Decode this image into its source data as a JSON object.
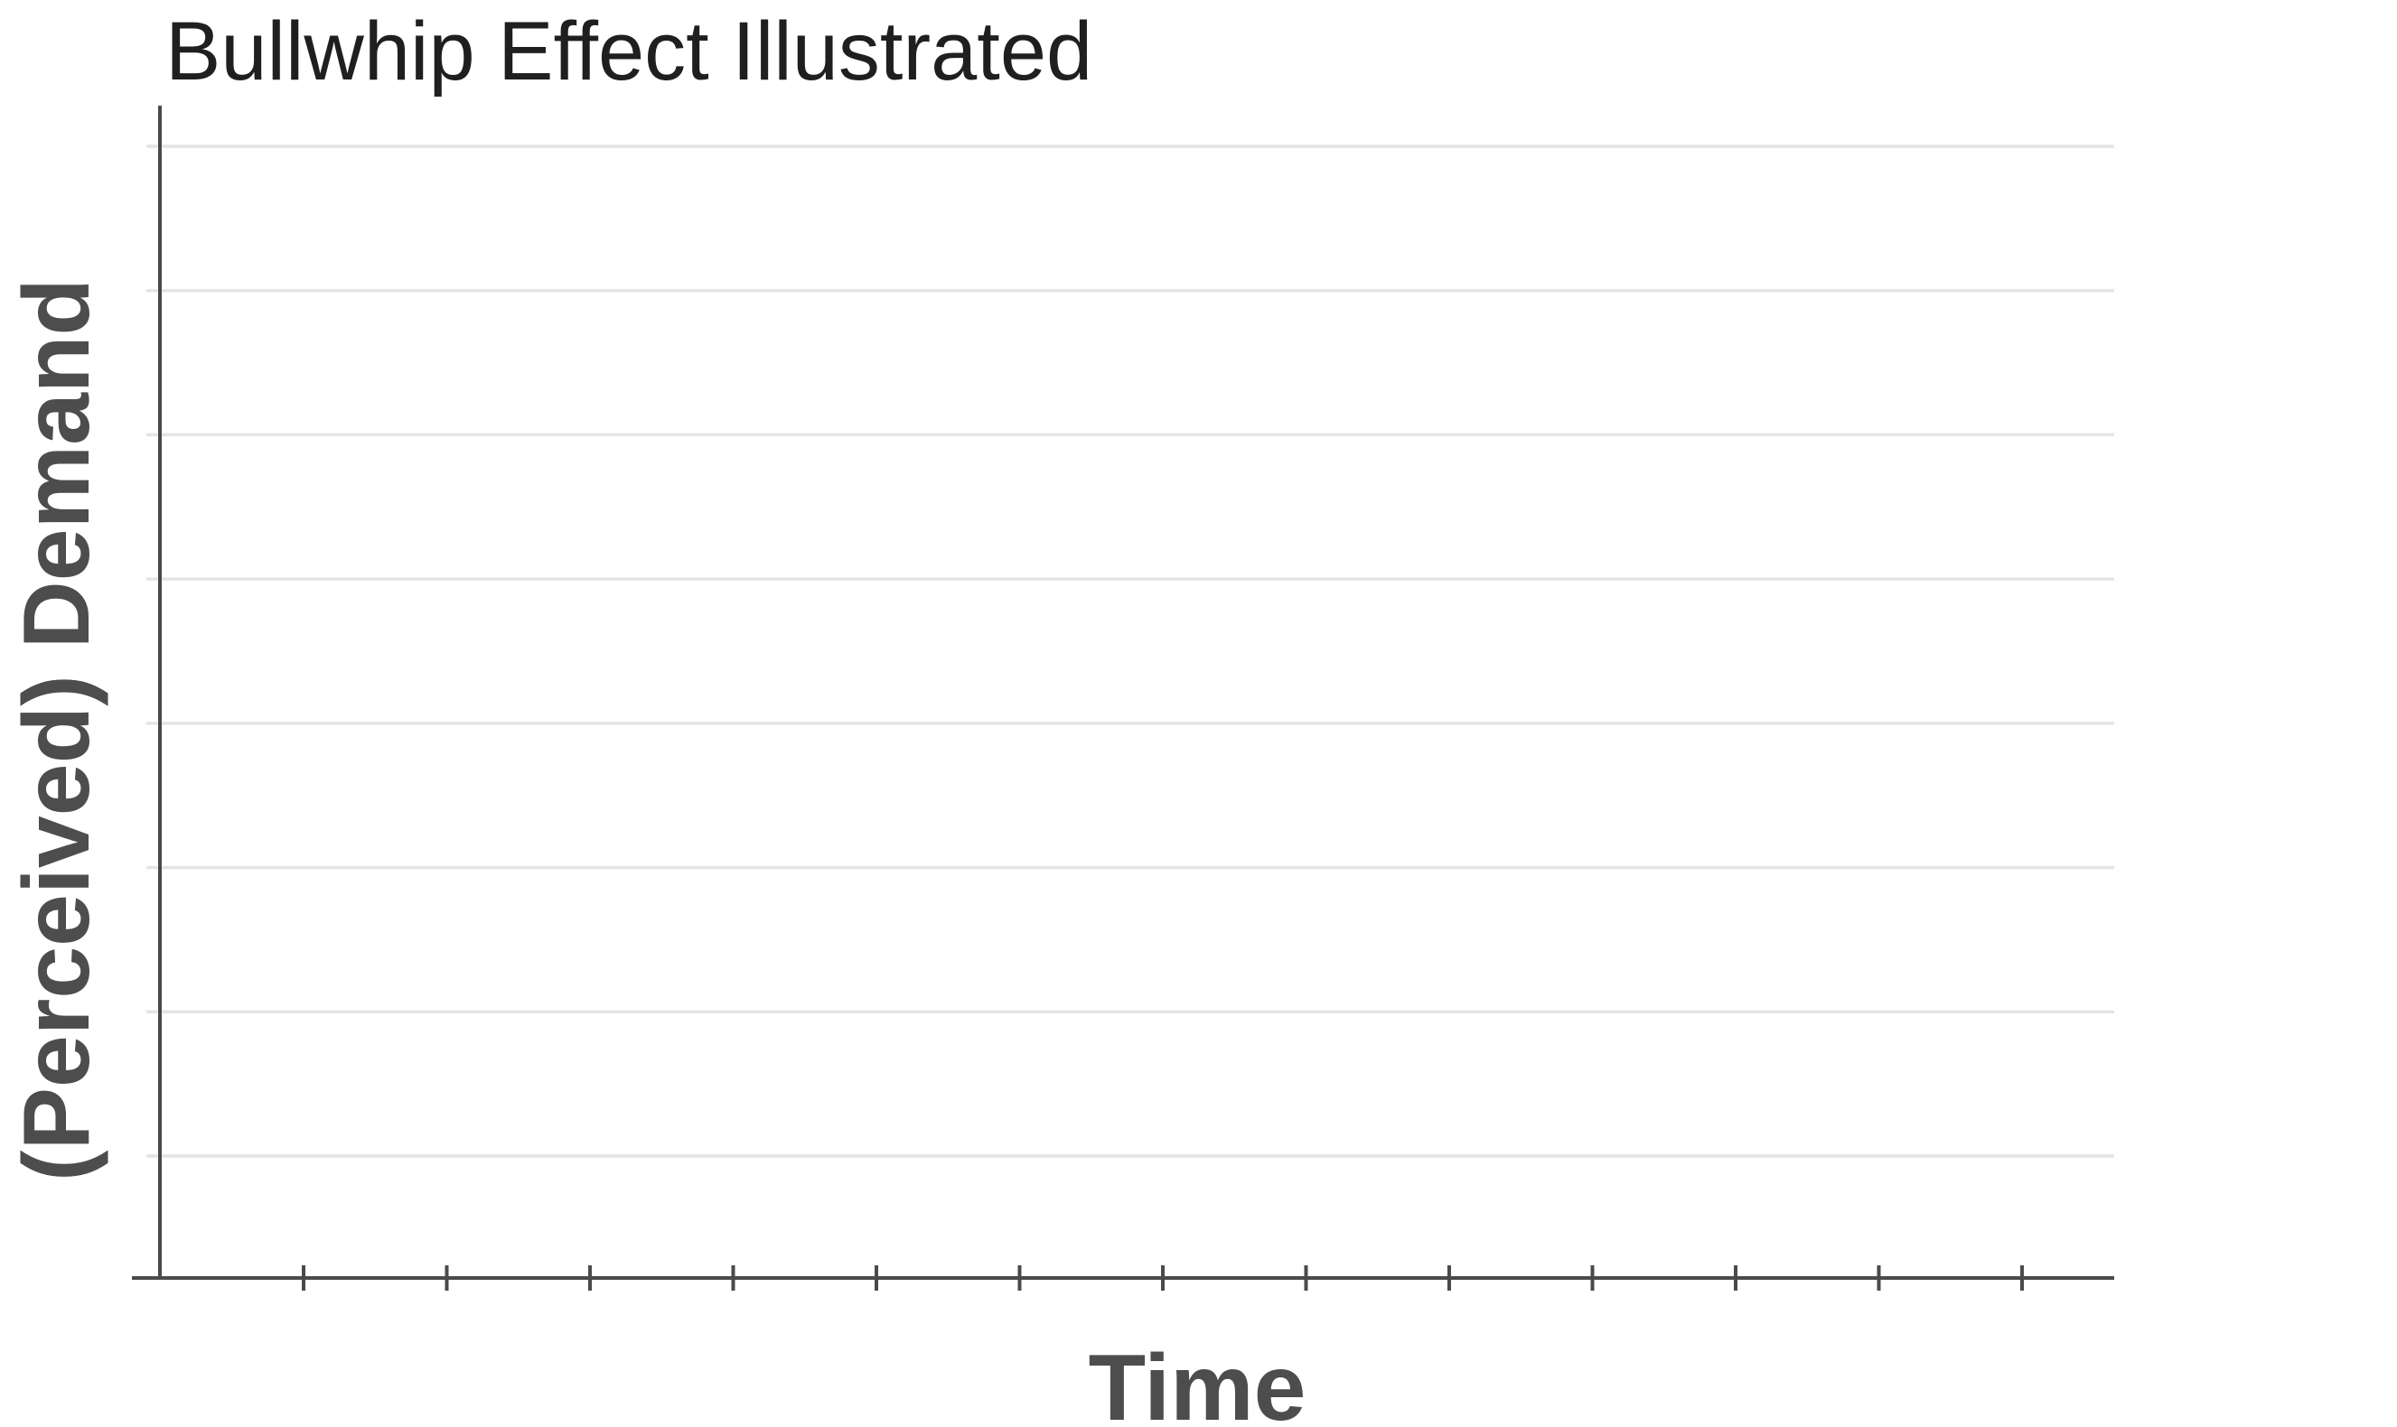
{
  "chart_data": {
    "type": "line",
    "title": "Bullwhip Effect Illustrated",
    "xlabel": "Time",
    "ylabel": "(Perceived) Demand",
    "x_tick_count": 13,
    "y_gridline_count": 8,
    "series": [],
    "grid": true,
    "legend": "none"
  }
}
